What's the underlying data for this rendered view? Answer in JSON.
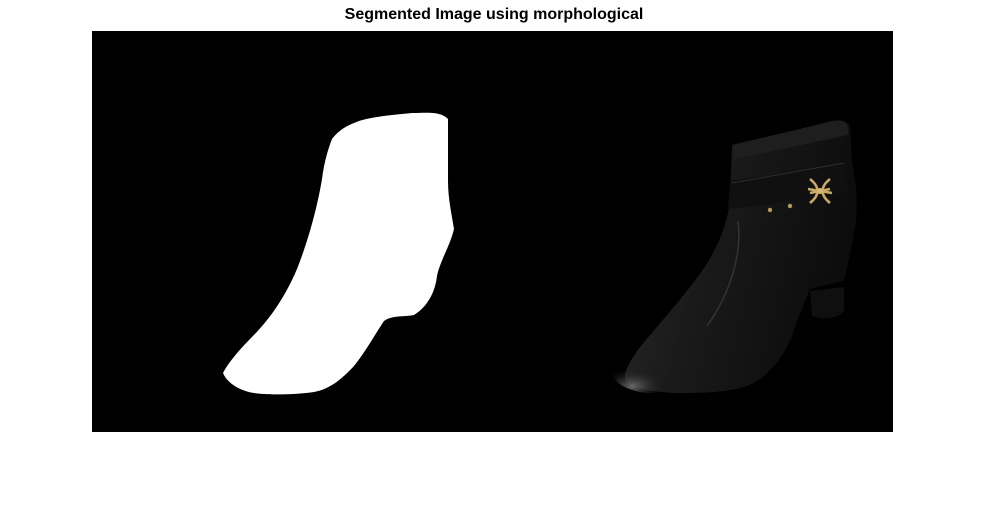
{
  "figure": {
    "title": "Segmented Image using morphological"
  },
  "colors": {
    "background": "#ffffff",
    "image_background": "#000000",
    "mask": "#ffffff",
    "boot": "#141414",
    "buckle": "#b89a5a"
  }
}
